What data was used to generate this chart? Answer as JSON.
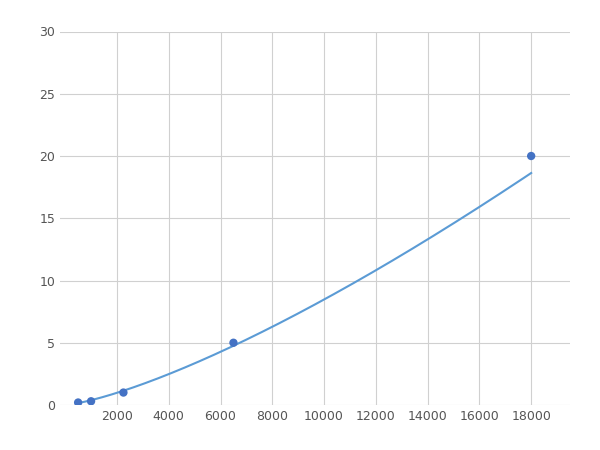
{
  "x_points": [
    500,
    1000,
    2250,
    6500,
    18000
  ],
  "y_points": [
    0.2,
    0.3,
    1.0,
    5.0,
    20.0
  ],
  "xlim": [
    -200,
    19500
  ],
  "ylim": [
    0,
    30
  ],
  "xticks": [
    2000,
    4000,
    6000,
    8000,
    10000,
    12000,
    14000,
    16000,
    18000
  ],
  "yticks": [
    0,
    5,
    10,
    15,
    20,
    25,
    30
  ],
  "line_color": "#5b9bd5",
  "marker_color": "#4472c4",
  "marker_size": 6,
  "linewidth": 1.5,
  "grid_color": "#d0d0d0",
  "background_color": "#ffffff"
}
